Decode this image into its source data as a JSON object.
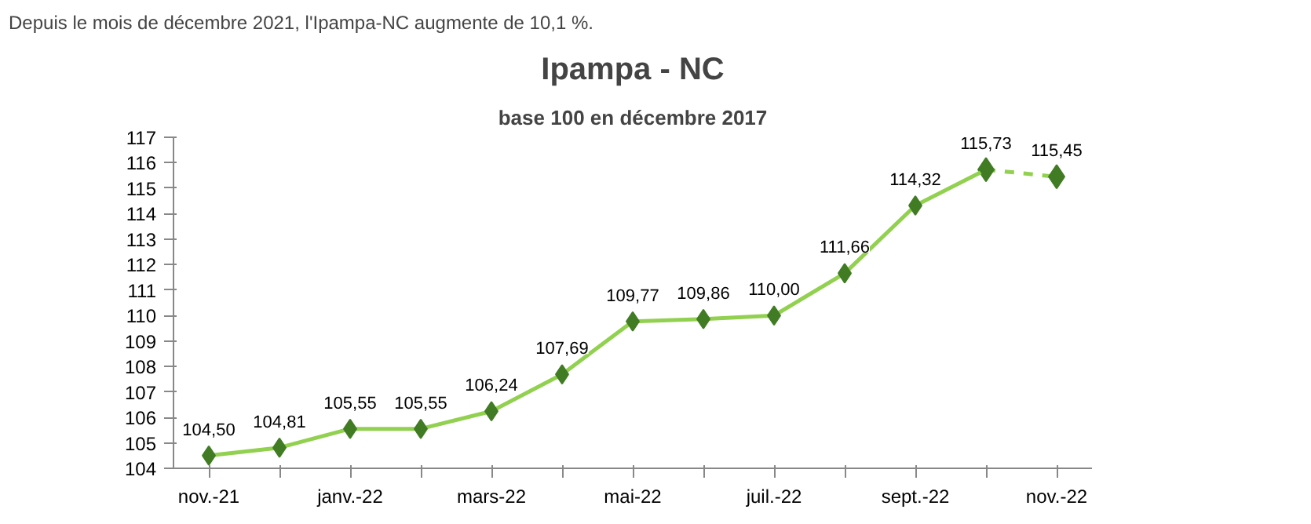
{
  "chart_data": {
    "type": "line",
    "title": "Ipampa - NC",
    "subtitle": "base 100 en décembre 2017",
    "annotations": [
      "Depuis le mois de décembre 2021, l'Ipampa-NC augmente de 10,1 %."
    ],
    "categories": [
      "nov.-21",
      null,
      "janv.-22",
      null,
      "mars-22",
      null,
      "mai-22",
      null,
      "juil.-22",
      null,
      "sept.-22",
      null,
      "nov.-22"
    ],
    "series": [
      {
        "color": "#92d050",
        "line_style": "solid",
        "marker": "diamond",
        "values": [
          104.5,
          104.81,
          105.55,
          105.55,
          106.24,
          107.69,
          109.77,
          109.86,
          110.0,
          111.66,
          114.32,
          115.73,
          null
        ],
        "value_labels": [
          "104,50",
          "104,81",
          "105,55",
          "105,55",
          "106,24",
          "107,69",
          "109,77",
          "109,86",
          "110,00",
          "111,66",
          "114,32",
          "115,73",
          null
        ]
      },
      {
        "color": "#92d050",
        "line_style": "dashed",
        "marker": "diamond",
        "values": [
          null,
          null,
          null,
          null,
          null,
          null,
          null,
          null,
          null,
          null,
          null,
          115.73,
          115.45
        ],
        "value_labels": [
          null,
          null,
          null,
          null,
          null,
          null,
          null,
          null,
          null,
          null,
          null,
          null,
          "115,45"
        ]
      }
    ],
    "ylim": [
      104,
      117
    ],
    "yticks": [
      104,
      105,
      106,
      107,
      108,
      109,
      110,
      111,
      112,
      113,
      114,
      115,
      116,
      117
    ],
    "grid": false
  }
}
